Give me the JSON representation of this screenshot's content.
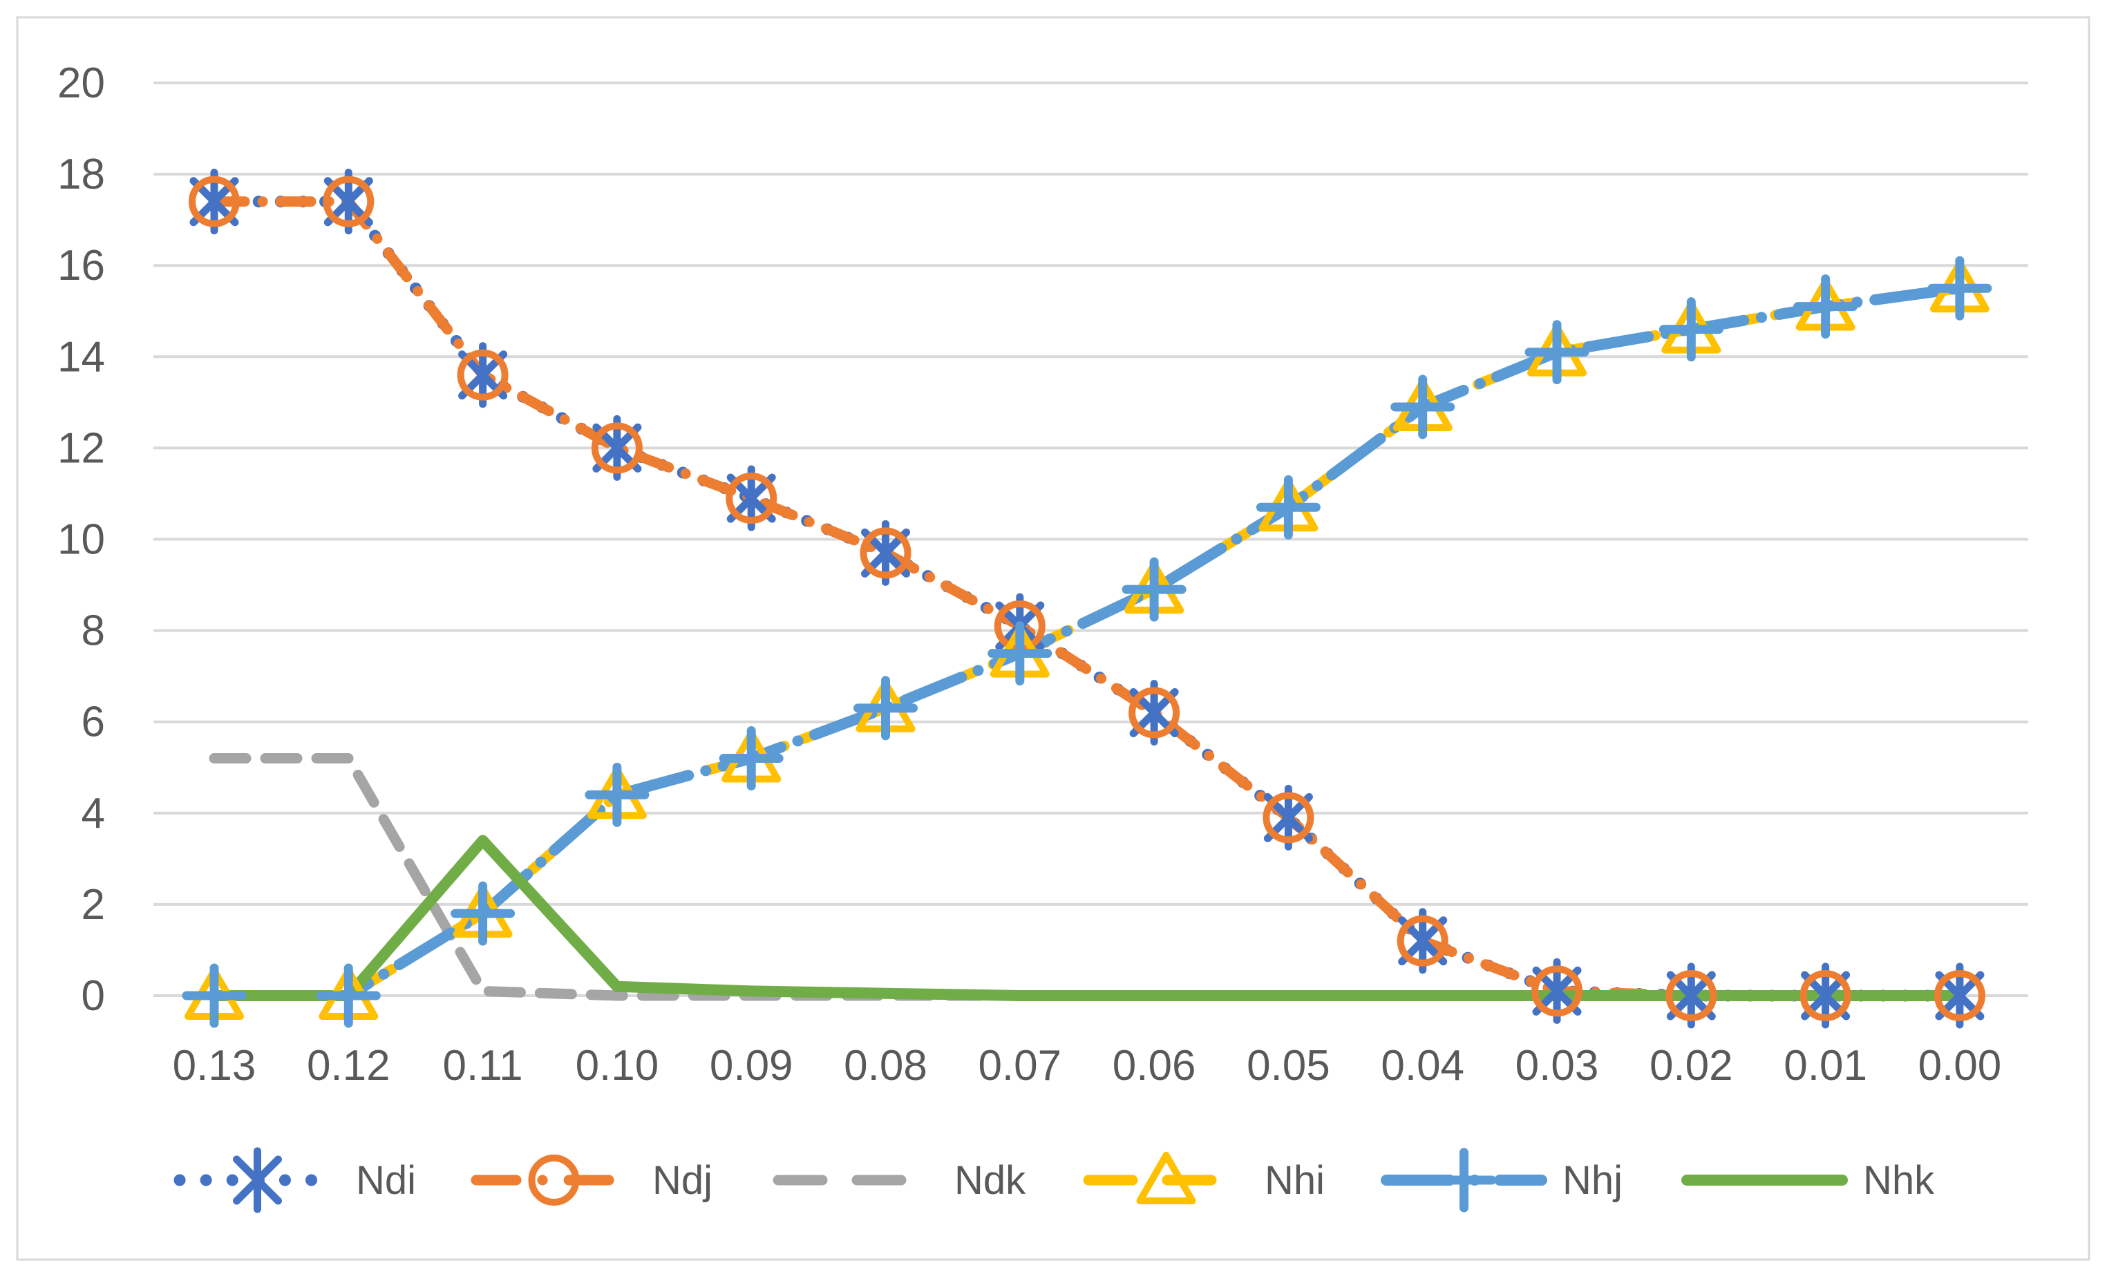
{
  "chart_data": {
    "type": "line",
    "title": "",
    "xlabel": "",
    "ylabel": "",
    "categories": [
      "0.13",
      "0.12",
      "0.11",
      "0.10",
      "0.09",
      "0.08",
      "0.07",
      "0.06",
      "0.05",
      "0.04",
      "0.03",
      "0.02",
      "0.01",
      "0.00"
    ],
    "yticks": [
      0,
      2,
      4,
      6,
      8,
      10,
      12,
      14,
      16,
      18,
      20
    ],
    "ylim": [
      0,
      20
    ],
    "grid": "horizontal",
    "legend_position": "bottom",
    "series": [
      {
        "name": "Ndi",
        "color": "#4472C4",
        "line_style": "dot",
        "marker": "asterisk",
        "values": [
          17.4,
          17.4,
          13.6,
          12.0,
          10.9,
          9.7,
          8.1,
          6.2,
          3.9,
          1.2,
          0.1,
          0,
          0,
          0
        ]
      },
      {
        "name": "Ndj",
        "color": "#ED7D31",
        "line_style": "dash-dot",
        "marker": "circle",
        "values": [
          17.4,
          17.4,
          13.6,
          12.0,
          10.9,
          9.7,
          8.1,
          6.2,
          3.9,
          1.2,
          0.1,
          0,
          0,
          0
        ]
      },
      {
        "name": "Ndk",
        "color": "#A5A5A5",
        "line_style": "dash",
        "marker": "none",
        "values": [
          5.2,
          5.2,
          0.1,
          0,
          0,
          0,
          0,
          0,
          0,
          0,
          0,
          0,
          0,
          0
        ]
      },
      {
        "name": "Nhi",
        "color": "#FFC000",
        "line_style": "dash",
        "marker": "triangle",
        "values": [
          0,
          0,
          1.8,
          4.4,
          5.2,
          6.3,
          7.5,
          8.9,
          10.7,
          12.9,
          14.1,
          14.6,
          15.1,
          15.5
        ]
      },
      {
        "name": "Nhj",
        "color": "#5B9BD5",
        "line_style": "long-dash-dot",
        "marker": "plus",
        "values": [
          0,
          0,
          1.8,
          4.4,
          5.2,
          6.3,
          7.5,
          8.9,
          10.7,
          12.9,
          14.1,
          14.6,
          15.1,
          15.5
        ]
      },
      {
        "name": "Nhk",
        "color": "#70AD47",
        "line_style": "solid",
        "marker": "none",
        "values": [
          0,
          0,
          3.4,
          0.2,
          0.1,
          0.05,
          0,
          0,
          0,
          0,
          0,
          0,
          0,
          0
        ]
      }
    ],
    "colors": {
      "grid": "#D9D9D9",
      "border": "#D9D9D9",
      "tick_text": "#595959",
      "legend_text": "#595959",
      "background": "#FFFFFF"
    }
  }
}
